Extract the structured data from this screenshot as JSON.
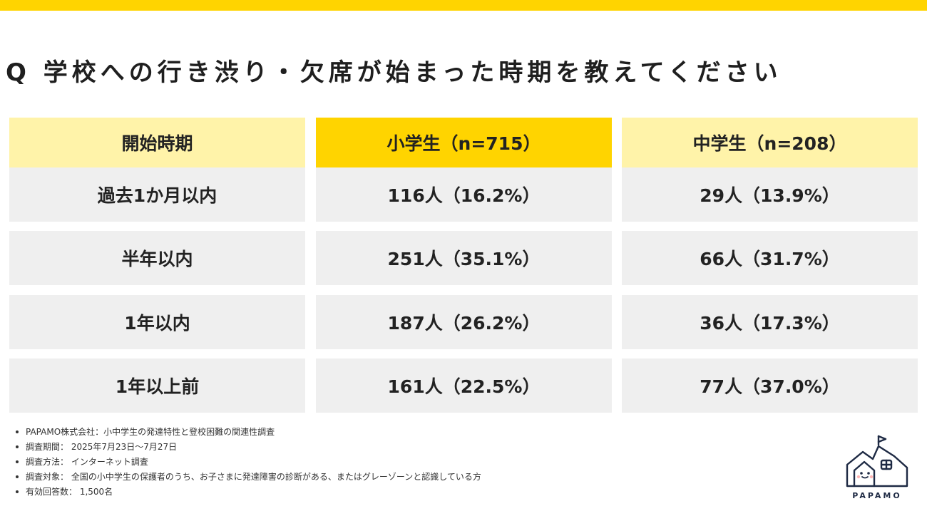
{
  "title": "Q 学校への行き渋り・欠席が始まった時期を教えてください",
  "colors": {
    "accent": "#FFD400",
    "header_light": "#FFF3A9",
    "cell_bg": "#EFEFEF",
    "logo_navy": "#1E2A44"
  },
  "table": {
    "headers": [
      "開始時期",
      "小学生（n=715）",
      "中学生（n=208）"
    ],
    "rows": [
      [
        "過去1か月以内",
        "116人（16.2%）",
        "29人（13.9%）"
      ],
      [
        "半年以内",
        "251人（35.1%）",
        "66人（31.7%）"
      ],
      [
        "1年以内",
        "187人（26.2%）",
        "36人（17.3%）"
      ],
      [
        "1年以上前",
        "161人（22.5%）",
        "77人（37.0%）"
      ]
    ]
  },
  "notes": [
    "PAPAMO株式会社：小中学生の発達特性と登校困難の関連性調査",
    "調査期間： 2025年7月23日～7月27日",
    "調査方法： インターネット調査",
    "調査対象： 全国の小中学生の保護者のうち、お子さまに発達障害の診断がある、またはグレーゾーンと認識している方",
    "有効回答数： 1,500名"
  ],
  "logo": {
    "text": "PAPAMO",
    "icon": "house-face-flag-icon"
  }
}
